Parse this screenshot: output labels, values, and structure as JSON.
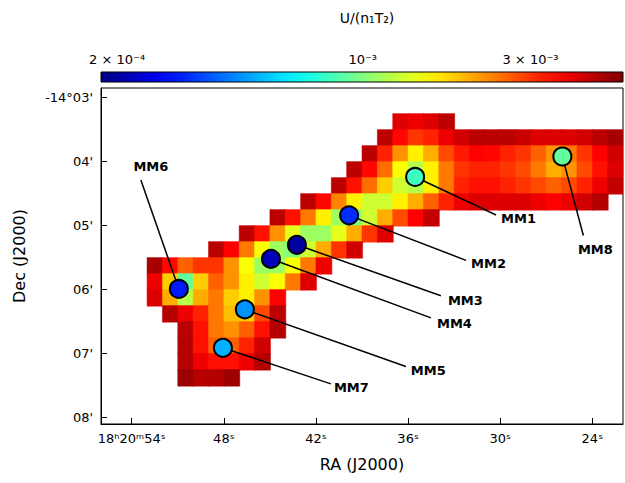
{
  "chart_data": {
    "type": "heatmap",
    "x_label": "RA (J2000)",
    "y_label": "Dec (J2000)",
    "xlim": [
      56,
      22
    ],
    "xticks": [
      {
        "value": 54,
        "label": "18ʰ20ᵐ54ˢ"
      },
      {
        "value": 48,
        "label": "48ˢ"
      },
      {
        "value": 42,
        "label": "42ˢ"
      },
      {
        "value": 36,
        "label": "36ˢ"
      },
      {
        "value": 30,
        "label": "30ˢ"
      },
      {
        "value": 24,
        "label": "24ˢ"
      }
    ],
    "ylim": [
      8.1,
      2.85
    ],
    "yticks": [
      {
        "value": 3,
        "label": "-14°03'"
      },
      {
        "value": 4,
        "label": "04'"
      },
      {
        "value": 5,
        "label": "05'"
      },
      {
        "value": 6,
        "label": "06'"
      },
      {
        "value": 7,
        "label": "07'"
      },
      {
        "value": 8,
        "label": "08'"
      }
    ],
    "colorbar": {
      "label": "U/(n₁T₂)",
      "range": [
        0.00018,
        0.0055
      ],
      "ticks": [
        {
          "value": 0.0002,
          "label": "2 × 10⁻⁴"
        },
        {
          "value": 0.001,
          "label": "10⁻³"
        },
        {
          "value": 0.003,
          "label": "3 × 10⁻³"
        }
      ]
    },
    "cell": {
      "ra": 1,
      "dec": 0.25
    },
    "cells": [
      {
        "dec": 3.375,
        "ra_from": 36.5,
        "values": [
          0.004,
          0.0038,
          0.004,
          0.0045
        ]
      },
      {
        "dec": 3.625,
        "ra_from": 37.5,
        "values": [
          0.0045,
          0.0035,
          0.003,
          0.0032,
          0.0038,
          0.0042,
          0.0045,
          0.0045,
          0.0045,
          0.0043,
          0.004,
          0.004,
          0.004,
          0.0042,
          0.0045,
          0.0048
        ]
      },
      {
        "dec": 3.875,
        "ra_from": 38.5,
        "values": [
          0.0045,
          0.0032,
          0.0022,
          0.0016,
          0.002,
          0.0028,
          0.0033,
          0.0036,
          0.0035,
          0.0032,
          0.003,
          0.0026,
          0.0022,
          0.0024,
          0.003,
          0.0036,
          0.0042
        ]
      },
      {
        "dec": 4.125,
        "ra_from": 39.5,
        "values": [
          0.0045,
          0.0035,
          0.0025,
          0.0015,
          0.0012,
          0.0016,
          0.0024,
          0.003,
          0.0032,
          0.0032,
          0.003,
          0.0028,
          0.0024,
          0.002,
          0.0022,
          0.0028,
          0.0034,
          0.004
        ]
      },
      {
        "dec": 4.375,
        "ra_from": 40.5,
        "values": [
          0.0045,
          0.0034,
          0.0025,
          0.0018,
          0.0013,
          0.0012,
          0.0016,
          0.0024,
          0.0032,
          0.0034,
          0.0034,
          0.0032,
          0.003,
          0.0028,
          0.0026,
          0.0028,
          0.0032,
          0.0038,
          0.0044
        ]
      },
      {
        "dec": 4.625,
        "ra_from": 42.5,
        "values": [
          0.0045,
          0.0035,
          0.0023,
          0.0016,
          0.0013,
          0.0013,
          0.0016,
          0.002,
          0.0026,
          0.0032,
          0.0038,
          0.004,
          0.004,
          0.004,
          0.004,
          0.0038,
          0.0036,
          0.0038,
          0.0042,
          0.0046
        ]
      },
      {
        "dec": 4.875,
        "ra_from": 44.5,
        "values": [
          0.0045,
          0.0034,
          0.0024,
          0.0016,
          0.0011,
          0.001,
          0.0013,
          0.002,
          0.0028,
          0.0036,
          0.0044
        ]
      },
      {
        "dec": 5.125,
        "ra_from": 46.5,
        "values": [
          0.0045,
          0.0034,
          0.0022,
          0.0014,
          0.0011,
          0.0011,
          0.0014,
          0.002,
          0.003,
          0.004
        ]
      },
      {
        "dec": 5.375,
        "ra_from": 48.5,
        "values": [
          0.0045,
          0.0036,
          0.0024,
          0.0015,
          0.0011,
          0.001,
          0.0013,
          0.002,
          0.003,
          0.0042
        ]
      },
      {
        "dec": 5.625,
        "ra_from": 52.5,
        "values": [
          0.0048,
          0.0035,
          0.0026,
          0.003,
          0.003,
          0.0022,
          0.0015,
          0.0011,
          0.0011,
          0.0015,
          0.0024,
          0.0038
        ]
      },
      {
        "dec": 5.875,
        "ra_from": 52.5,
        "values": [
          0.0038,
          0.0018,
          0.0009,
          0.0018,
          0.0026,
          0.0022,
          0.0016,
          0.0013,
          0.0015,
          0.0024,
          0.004
        ]
      },
      {
        "dec": 6.125,
        "ra_from": 52.5,
        "values": [
          0.004,
          0.002,
          0.0012,
          0.002,
          0.0024,
          0.0018,
          0.0016,
          0.0022,
          0.0036
        ]
      },
      {
        "dec": 6.375,
        "ra_from": 51.5,
        "values": [
          0.0046,
          0.0038,
          0.0032,
          0.0024,
          0.0019,
          0.0018,
          0.0028,
          0.0045
        ]
      },
      {
        "dec": 6.625,
        "ra_from": 50.5,
        "values": [
          0.0045,
          0.0034,
          0.0024,
          0.0022,
          0.0026,
          0.0034,
          0.0046
        ]
      },
      {
        "dec": 6.875,
        "ra_from": 50.5,
        "values": [
          0.0046,
          0.0034,
          0.0026,
          0.0026,
          0.0032,
          0.0042
        ]
      },
      {
        "dec": 7.125,
        "ra_from": 50.5,
        "values": [
          0.0046,
          0.0038,
          0.0034,
          0.0034,
          0.0038,
          0.0046
        ]
      },
      {
        "dec": 7.375,
        "ra_from": 50.5,
        "values": [
          0.005,
          0.0046,
          0.0046,
          0.005
        ]
      }
    ],
    "sources": {
      "marker": "circle",
      "names": [
        "MM1",
        "MM2",
        "MM3",
        "MM4",
        "MM5",
        "MM6",
        "MM7",
        "MM8"
      ],
      "ra": [
        35.54,
        39.84,
        43.24,
        44.93,
        46.63,
        50.93,
        48.06,
        25.95
      ],
      "dec": [
        4.24,
        4.84,
        5.3,
        5.52,
        6.31,
        5.99,
        6.91,
        3.92
      ],
      "values": [
        0.0008,
        0.00032,
        0.0002,
        0.00022,
        0.00045,
        0.0003,
        0.0005,
        0.0009
      ]
    }
  }
}
